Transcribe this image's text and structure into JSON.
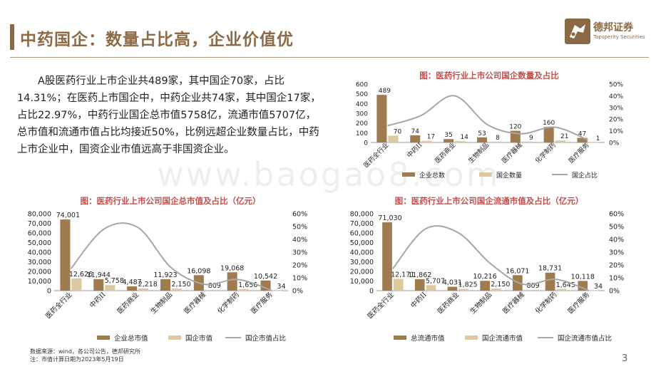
{
  "page": {
    "title": "中药国企：数量占比高，企业价值优",
    "intro": "A股医药行业上市企业共489家，其中国企70家，占比14.31%；在医药上市国企中，中药企业共74家，其中国企17家，占比22.97%，中药行业国企总市值5758亿，流通市值5707亿，总市值和流通市值占比均接近50%，比例远超企业数量占比，中药上市企业中，国资企业市值远高于非国资企业。",
    "logo_cn": "德邦证券",
    "logo_en": "Topsperity Securities",
    "watermark": "www.baogao8.com",
    "source_note": "数据来源：wind，各公司公告，德邦研究所",
    "source_note2": "注：市值计算日期为2023年5月19日",
    "page_number": "3"
  },
  "colors": {
    "brand": "#8c6a45",
    "bar_dark": "#a07b4f",
    "bar_light": "#dcc9a0",
    "line": "#a6a6a6",
    "title_red": "#c0504d"
  },
  "chart_data": [
    {
      "id": "count",
      "type": "bar",
      "title": "图：医药行业上市公司国企数量及占比",
      "categories": [
        "医药全行业",
        "中药II",
        "医药商业",
        "生物制品",
        "医疗器械",
        "化学制药",
        "医疗服务"
      ],
      "series": [
        {
          "name": "企业总数",
          "type": "bar",
          "axis": "left",
          "values": [
            489,
            74,
            35,
            53,
            120,
            160,
            47
          ],
          "labels": [
            "489",
            "74",
            "35",
            "53",
            "120",
            "160",
            "47"
          ]
        },
        {
          "name": "国企数量",
          "type": "bar",
          "axis": "left",
          "values": [
            70,
            17,
            14,
            8,
            9,
            21,
            1
          ],
          "labels": [
            "70",
            "17",
            "14",
            "8",
            "9",
            "21",
            "1"
          ]
        },
        {
          "name": "国企占比",
          "type": "line",
          "axis": "right",
          "values": [
            14.3,
            23.0,
            40.0,
            15.1,
            7.5,
            13.1,
            2.1
          ]
        }
      ],
      "ylim": [
        0,
        600
      ],
      "yticks": [
        "0",
        "100",
        "200",
        "300",
        "400",
        "500",
        "600"
      ],
      "y2lim": [
        0,
        50
      ],
      "y2ticks": [
        "0%",
        "10%",
        "20%",
        "30%",
        "40%",
        "50%"
      ],
      "grid": false,
      "legend": "bottom"
    },
    {
      "id": "mktcap",
      "type": "bar",
      "title": "图：医药行业上市公司国企总市值及占比（亿元）",
      "categories": [
        "医药全行业",
        "中药II",
        "医药商业",
        "生物制品",
        "医疗器械",
        "化学制药",
        "医疗服务"
      ],
      "series": [
        {
          "name": "企业总市值",
          "type": "bar",
          "axis": "left",
          "values": [
            74001,
            11944,
            4487,
            11923,
            16098,
            19068,
            10542
          ],
          "labels": [
            "74,001",
            "11,944",
            "4,487",
            "11,923",
            "16,098",
            "19,068",
            "10,542"
          ]
        },
        {
          "name": "国企市值",
          "type": "bar",
          "axis": "left",
          "values": [
            12626,
            5758,
            2218,
            2150,
            809,
            1656,
            34
          ],
          "labels": [
            "12,626",
            "5,758",
            "2,218",
            "2,150",
            "809",
            "1,656",
            "34"
          ]
        },
        {
          "name": "国企市值占比",
          "type": "line",
          "axis": "right",
          "values": [
            17.1,
            48.2,
            49.4,
            18.0,
            5.0,
            8.7,
            0.3
          ]
        }
      ],
      "ylim": [
        0,
        80000
      ],
      "yticks": [
        "0",
        "10,000",
        "20,000",
        "30,000",
        "40,000",
        "50,000",
        "60,000",
        "70,000",
        "80,000"
      ],
      "y2lim": [
        0,
        60
      ],
      "y2ticks": [
        "0%",
        "10%",
        "20%",
        "30%",
        "40%",
        "50%",
        "60%"
      ],
      "grid": false,
      "legend": "bottom"
    },
    {
      "id": "float",
      "type": "bar",
      "title": "图：医药行业上市公司国企流通市值及占比（亿元）",
      "categories": [
        "医药全行业",
        "中药II",
        "医药商业",
        "生物制品",
        "医疗器械",
        "化学制药",
        "医疗服务"
      ],
      "series": [
        {
          "name": "总流通市值",
          "type": "bar",
          "axis": "left",
          "values": [
            71030,
            11862,
            4031,
            10216,
            16071,
            18731,
            10118
          ],
          "labels": [
            "71,030",
            "11,862",
            "4,031",
            "10,216",
            "16,071",
            "18,731",
            "10,118"
          ]
        },
        {
          "name": "国企流通市值",
          "type": "bar",
          "axis": "left",
          "values": [
            12171,
            5707,
            1825,
            2150,
            809,
            1645,
            34
          ],
          "labels": [
            "12,171",
            "5,707",
            "1,825",
            "2,150",
            "809",
            "1,645",
            "34"
          ]
        },
        {
          "name": "国企流通市值占比",
          "type": "line",
          "axis": "right",
          "values": [
            17.1,
            48.1,
            45.3,
            21.0,
            5.0,
            8.8,
            0.3
          ]
        }
      ],
      "ylim": [
        0,
        80000
      ],
      "yticks": [
        "0",
        "10,000",
        "20,000",
        "30,000",
        "40,000",
        "50,000",
        "60,000",
        "70,000",
        "80,000"
      ],
      "y2lim": [
        0,
        60
      ],
      "y2ticks": [
        "0%",
        "10%",
        "20%",
        "30%",
        "40%",
        "50%",
        "60%"
      ],
      "grid": false,
      "legend": "bottom"
    }
  ]
}
